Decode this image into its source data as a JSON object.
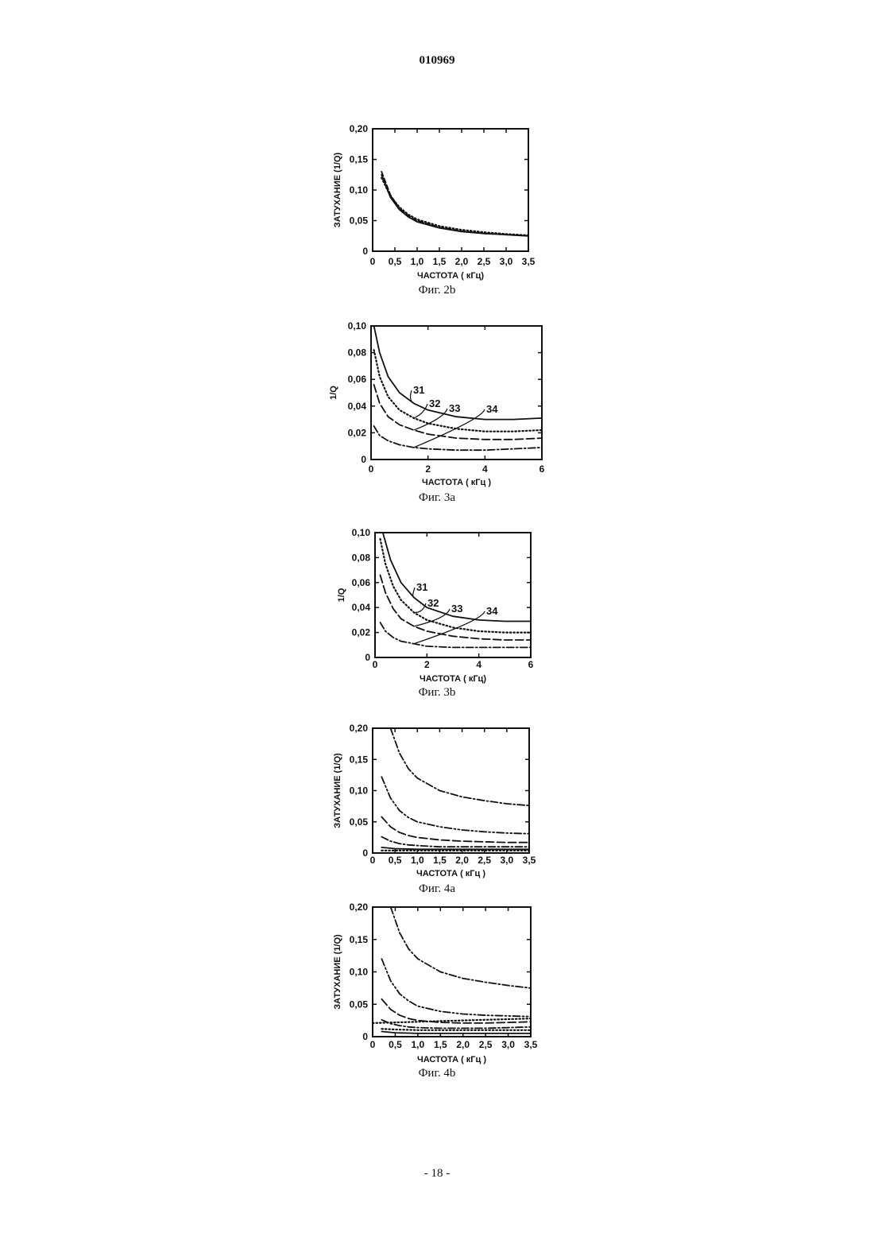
{
  "header": {
    "doc_number": "010969"
  },
  "footer": {
    "page_number": "- 18 -"
  },
  "chart_data": [
    {
      "id": "fig2b",
      "type": "line",
      "caption": "Фиг. 2b",
      "xlabel": "ЧАСТОТА ( кГц)",
      "ylabel": "ЗАТУХАНИЕ (1/Q)",
      "xlim": [
        0,
        3.5
      ],
      "ylim": [
        0,
        0.2
      ],
      "x_ticks": [
        "0",
        "0,5",
        "1,0",
        "1,5",
        "2,0",
        "2,5",
        "3,0",
        "3,5"
      ],
      "y_ticks": [
        "0",
        "0,05",
        "0,10",
        "0,15",
        "0,20"
      ],
      "series": [
        {
          "style": "solid",
          "x": [
            0.2,
            0.4,
            0.6,
            0.8,
            1.0,
            1.5,
            2.0,
            2.5,
            3.0,
            3.5
          ],
          "y": [
            0.125,
            0.088,
            0.068,
            0.056,
            0.048,
            0.038,
            0.032,
            0.029,
            0.027,
            0.025
          ]
        },
        {
          "style": "dotted",
          "x": [
            0.2,
            0.4,
            0.6,
            0.8,
            1.0,
            1.5,
            2.0,
            2.5,
            3.0,
            3.5
          ],
          "y": [
            0.12,
            0.09,
            0.072,
            0.06,
            0.052,
            0.041,
            0.035,
            0.031,
            0.028,
            0.026
          ]
        },
        {
          "style": "dashed",
          "x": [
            0.2,
            0.4,
            0.6,
            0.8,
            1.0,
            1.5,
            2.0,
            2.5,
            3.0,
            3.5
          ],
          "y": [
            0.13,
            0.092,
            0.07,
            0.058,
            0.05,
            0.039,
            0.033,
            0.029,
            0.027,
            0.025
          ]
        }
      ]
    },
    {
      "id": "fig3a",
      "type": "line",
      "caption": "Фиг. 3a",
      "xlabel": "ЧАСТОТА ( кГц )",
      "ylabel": "1/Q",
      "xlim": [
        0,
        6
      ],
      "ylim": [
        0,
        0.1
      ],
      "x_ticks": [
        "0",
        "2",
        "4",
        "6"
      ],
      "y_ticks": [
        "0",
        "0,02",
        "0,04",
        "0,06",
        "0,08",
        "0,10"
      ],
      "series": [
        {
          "name": "31",
          "style": "solid",
          "x": [
            0.1,
            0.3,
            0.6,
            1.0,
            1.5,
            2.0,
            3.0,
            4.0,
            5.0,
            6.0
          ],
          "y": [
            0.1,
            0.08,
            0.062,
            0.05,
            0.042,
            0.037,
            0.032,
            0.03,
            0.03,
            0.031
          ]
        },
        {
          "name": "32",
          "style": "dotted",
          "x": [
            0.1,
            0.3,
            0.6,
            1.0,
            1.5,
            2.0,
            3.0,
            4.0,
            5.0,
            6.0
          ],
          "y": [
            0.082,
            0.062,
            0.047,
            0.037,
            0.031,
            0.027,
            0.023,
            0.021,
            0.021,
            0.022
          ]
        },
        {
          "name": "33",
          "style": "dash",
          "x": [
            0.1,
            0.3,
            0.6,
            1.0,
            1.5,
            2.0,
            3.0,
            4.0,
            5.0,
            6.0
          ],
          "y": [
            0.056,
            0.042,
            0.032,
            0.026,
            0.022,
            0.019,
            0.016,
            0.015,
            0.015,
            0.016
          ]
        },
        {
          "name": "34",
          "style": "dashdot",
          "x": [
            0.1,
            0.3,
            0.6,
            1.0,
            1.5,
            2.0,
            3.0,
            4.0,
            5.0,
            6.0
          ],
          "y": [
            0.025,
            0.018,
            0.014,
            0.011,
            0.009,
            0.008,
            0.007,
            0.007,
            0.008,
            0.009
          ]
        }
      ]
    },
    {
      "id": "fig3b",
      "type": "line",
      "caption": "Фиг. 3b",
      "xlabel": "ЧАСТОТА ( кГц)",
      "ylabel": "1/Q",
      "xlim": [
        0,
        6
      ],
      "ylim": [
        0,
        0.1
      ],
      "x_ticks": [
        "0",
        "2",
        "4",
        "6"
      ],
      "y_ticks": [
        "0",
        "0,02",
        "0,04",
        "0,06",
        "0,08",
        "0,10"
      ],
      "series": [
        {
          "name": "31",
          "style": "solid",
          "x": [
            0.3,
            0.6,
            1.0,
            1.5,
            2.0,
            3.0,
            4.0,
            5.0,
            6.0
          ],
          "y": [
            0.1,
            0.078,
            0.06,
            0.048,
            0.04,
            0.033,
            0.03,
            0.029,
            0.029
          ]
        },
        {
          "name": "32",
          "style": "dotted",
          "x": [
            0.2,
            0.4,
            0.7,
            1.0,
            1.5,
            2.0,
            3.0,
            4.0,
            5.0,
            6.0
          ],
          "y": [
            0.095,
            0.075,
            0.057,
            0.046,
            0.036,
            0.03,
            0.024,
            0.021,
            0.02,
            0.02
          ]
        },
        {
          "name": "33",
          "style": "dash",
          "x": [
            0.2,
            0.4,
            0.7,
            1.0,
            1.5,
            2.0,
            3.0,
            4.0,
            5.0,
            6.0
          ],
          "y": [
            0.066,
            0.052,
            0.039,
            0.031,
            0.025,
            0.021,
            0.017,
            0.015,
            0.014,
            0.014
          ]
        },
        {
          "name": "34",
          "style": "dashdot",
          "x": [
            0.2,
            0.4,
            0.7,
            1.0,
            1.5,
            2.0,
            3.0,
            4.0,
            5.0,
            6.0
          ],
          "y": [
            0.028,
            0.021,
            0.016,
            0.013,
            0.011,
            0.009,
            0.008,
            0.008,
            0.008,
            0.008
          ]
        }
      ]
    },
    {
      "id": "fig4a",
      "type": "line",
      "caption": "Фиг. 4a",
      "xlabel": "ЧАСТОТА ( кГц )",
      "ylabel": "ЗАТУХАНИЕ (1/Q)",
      "xlim": [
        0,
        3.5
      ],
      "ylim": [
        0,
        0.2
      ],
      "x_ticks": [
        "0",
        "0,5",
        "1,0",
        "1,5",
        "2,0",
        "2,5",
        "3,0",
        "3,5"
      ],
      "y_ticks": [
        "0",
        "0,05",
        "0,10",
        "0,15",
        "0,20"
      ],
      "series": [
        {
          "style": "dashdot",
          "x": [
            0.4,
            0.6,
            0.8,
            1.0,
            1.5,
            2.0,
            2.5,
            3.0,
            3.5
          ],
          "y": [
            0.2,
            0.16,
            0.135,
            0.12,
            0.1,
            0.09,
            0.084,
            0.079,
            0.076
          ]
        },
        {
          "style": "dashdotdot",
          "x": [
            0.2,
            0.4,
            0.6,
            0.8,
            1.0,
            1.5,
            2.0,
            2.5,
            3.0,
            3.5
          ],
          "y": [
            0.122,
            0.088,
            0.068,
            0.057,
            0.05,
            0.042,
            0.037,
            0.034,
            0.032,
            0.031
          ]
        },
        {
          "style": "dash",
          "x": [
            0.2,
            0.4,
            0.6,
            0.8,
            1.0,
            1.5,
            2.0,
            2.5,
            3.0,
            3.5
          ],
          "y": [
            0.058,
            0.042,
            0.033,
            0.028,
            0.025,
            0.021,
            0.019,
            0.018,
            0.017,
            0.017
          ]
        },
        {
          "style": "dashdot",
          "x": [
            0.2,
            0.4,
            0.6,
            0.8,
            1.0,
            1.5,
            2.0,
            2.5,
            3.0,
            3.5
          ],
          "y": [
            0.026,
            0.019,
            0.015,
            0.013,
            0.012,
            0.01,
            0.01,
            0.01,
            0.01,
            0.01
          ]
        },
        {
          "style": "solid",
          "x": [
            0.2,
            0.5,
            1.0,
            1.5,
            2.0,
            2.5,
            3.0,
            3.5
          ],
          "y": [
            0.009,
            0.007,
            0.006,
            0.006,
            0.006,
            0.006,
            0.006,
            0.006
          ]
        },
        {
          "style": "dotted",
          "x": [
            0.2,
            0.5,
            1.0,
            1.5,
            2.0,
            2.5,
            3.0,
            3.5
          ],
          "y": [
            0.004,
            0.004,
            0.004,
            0.004,
            0.004,
            0.004,
            0.004,
            0.004
          ]
        }
      ]
    },
    {
      "id": "fig4b",
      "type": "line",
      "caption": "Фиг. 4b",
      "xlabel": "ЧАСТОТА ( кГц )",
      "ylabel": "ЗАТУХАНИЕ (1/Q)",
      "xlim": [
        0,
        3.5
      ],
      "ylim": [
        0,
        0.2
      ],
      "x_ticks": [
        "0",
        "0,5",
        "1,0",
        "1,5",
        "2,0",
        "2,5",
        "3,0",
        "3,5"
      ],
      "y_ticks": [
        "0",
        "0,05",
        "0,10",
        "0,15",
        "0,20"
      ],
      "series": [
        {
          "style": "dashdot",
          "x": [
            0.4,
            0.6,
            0.8,
            1.0,
            1.5,
            2.0,
            2.5,
            3.0,
            3.5
          ],
          "y": [
            0.2,
            0.16,
            0.135,
            0.12,
            0.1,
            0.09,
            0.084,
            0.079,
            0.075
          ]
        },
        {
          "style": "dashdotdot",
          "x": [
            0.2,
            0.4,
            0.6,
            0.8,
            1.0,
            1.5,
            2.0,
            2.5,
            3.0,
            3.5
          ],
          "y": [
            0.12,
            0.086,
            0.066,
            0.055,
            0.047,
            0.039,
            0.035,
            0.033,
            0.032,
            0.031
          ]
        },
        {
          "style": "dash",
          "x": [
            0.2,
            0.4,
            0.6,
            0.8,
            1.0,
            1.5,
            2.0,
            2.5,
            3.0,
            3.5
          ],
          "y": [
            0.058,
            0.042,
            0.033,
            0.028,
            0.025,
            0.022,
            0.021,
            0.021,
            0.022,
            0.023
          ]
        },
        {
          "style": "dotted",
          "x": [
            0.0,
            0.5,
            1.0,
            1.5,
            2.0,
            2.5,
            3.0,
            3.5
          ],
          "y": [
            0.021,
            0.022,
            0.023,
            0.024,
            0.025,
            0.026,
            0.027,
            0.028
          ]
        },
        {
          "style": "dashdot",
          "x": [
            0.2,
            0.4,
            0.6,
            0.8,
            1.0,
            1.5,
            2.0,
            2.5,
            3.0,
            3.5
          ],
          "y": [
            0.026,
            0.02,
            0.017,
            0.015,
            0.014,
            0.013,
            0.013,
            0.013,
            0.014,
            0.015
          ]
        },
        {
          "style": "dotted",
          "x": [
            0.2,
            0.5,
            1.0,
            1.5,
            2.0,
            2.5,
            3.0,
            3.5
          ],
          "y": [
            0.012,
            0.011,
            0.01,
            0.01,
            0.01,
            0.01,
            0.01,
            0.01
          ]
        },
        {
          "style": "solid",
          "x": [
            0.2,
            0.5,
            1.0,
            1.5,
            2.0,
            2.5,
            3.0,
            3.5
          ],
          "y": [
            0.008,
            0.006,
            0.005,
            0.005,
            0.005,
            0.005,
            0.005,
            0.005
          ]
        }
      ]
    }
  ]
}
